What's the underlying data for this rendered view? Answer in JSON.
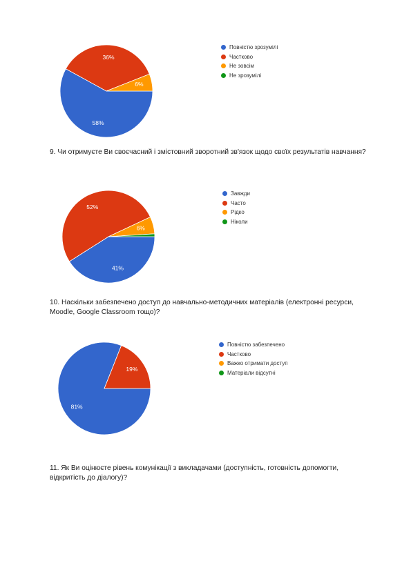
{
  "colors": {
    "blue": "#3366cc",
    "red": "#dc3912",
    "orange": "#ff9900",
    "green": "#109618"
  },
  "questions": {
    "q9": "9. Чи отримуєте Ви своєчасний і змістовний зворотний зв'язок щодо своїх результатів навчання?",
    "q10": "10. Наскільки забезпечено доступ до навчально-методичних матеріалів (електронні ресурси, Moodle, Google Classroom тощо)?",
    "q11": "11. Як Ви оцінюєте рівень комунікації з викладачами (доступність, готовність допомогти, відкритість до діалогу)?"
  },
  "chart_data": [
    {
      "type": "pie",
      "series": [
        {
          "label": "Повністю зрозумілі",
          "value": 58,
          "color": "#3366cc",
          "data_label": "58%"
        },
        {
          "label": "Частково",
          "value": 36,
          "color": "#dc3912",
          "data_label": "36%"
        },
        {
          "label": "Не зовсім",
          "value": 6,
          "color": "#ff9900",
          "data_label": "6%"
        },
        {
          "label": "Не зрозумілі",
          "value": 0,
          "color": "#109618",
          "data_label": ""
        }
      ],
      "legend_position": "right"
    },
    {
      "type": "pie",
      "series": [
        {
          "label": "Завжди",
          "value": 41,
          "color": "#3366cc",
          "data_label": "41%"
        },
        {
          "label": "Часто",
          "value": 52,
          "color": "#dc3912",
          "data_label": "52%"
        },
        {
          "label": "Рідко",
          "value": 6,
          "color": "#ff9900",
          "data_label": "6%"
        },
        {
          "label": "Ніколи",
          "value": 1,
          "color": "#109618",
          "data_label": ""
        }
      ],
      "legend_position": "right"
    },
    {
      "type": "pie",
      "series": [
        {
          "label": "Повністю забезпечено",
          "value": 81,
          "color": "#3366cc",
          "data_label": "81%"
        },
        {
          "label": "Частково",
          "value": 19,
          "color": "#dc3912",
          "data_label": "19%"
        },
        {
          "label": "Важко отримати доступ",
          "value": 0,
          "color": "#ff9900",
          "data_label": ""
        },
        {
          "label": "Матеріали відсутні",
          "value": 0,
          "color": "#109618",
          "data_label": ""
        }
      ],
      "legend_position": "right"
    }
  ]
}
